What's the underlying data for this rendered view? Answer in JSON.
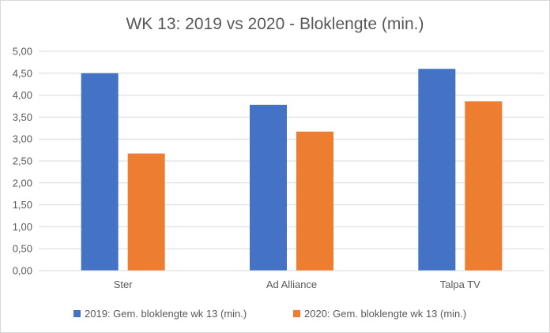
{
  "chart_data": {
    "type": "bar",
    "title": "WK 13: 2019 vs 2020 - Bloklengte (min.)",
    "xlabel": "",
    "ylabel": "",
    "categories": [
      "Ster",
      "Ad Alliance",
      "Talpa TV"
    ],
    "series": [
      {
        "name": "2019: Gem. bloklengte wk 13 (min.)",
        "color": "#4472c4",
        "values": [
          4.5,
          3.78,
          4.6
        ]
      },
      {
        "name": "2020: Gem. bloklengte wk 13 (min.)",
        "color": "#ed7d31",
        "values": [
          2.67,
          3.17,
          3.86
        ]
      }
    ],
    "ylim": [
      0,
      5
    ],
    "yticks": [
      "0,00",
      "0,50",
      "1,00",
      "1,50",
      "2,00",
      "2,50",
      "3,00",
      "3,50",
      "4,00",
      "4,50",
      "5,00"
    ],
    "grid": true,
    "legend": "bottom"
  }
}
